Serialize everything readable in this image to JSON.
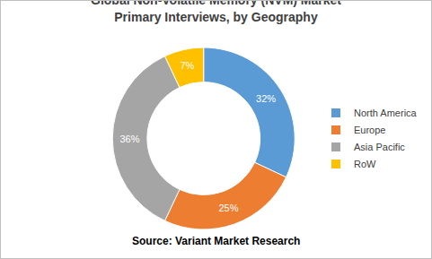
{
  "chart_data": {
    "type": "pie",
    "title": "Global Non-Volatile Memory (NVM) Market Primary Interviews, by Geography",
    "categories": [
      "North America",
      "Europe",
      "Asia Pacific",
      "RoW"
    ],
    "values": [
      32,
      25,
      36,
      7
    ],
    "value_labels": [
      "32%",
      "25%",
      "36%",
      "7%"
    ],
    "colors": [
      "#5b9bd5",
      "#ed7d31",
      "#a5a5a5",
      "#ffc000"
    ],
    "data_labels": true,
    "legend": "right",
    "annotations": [
      "Source: Variant Market Research"
    ]
  }
}
